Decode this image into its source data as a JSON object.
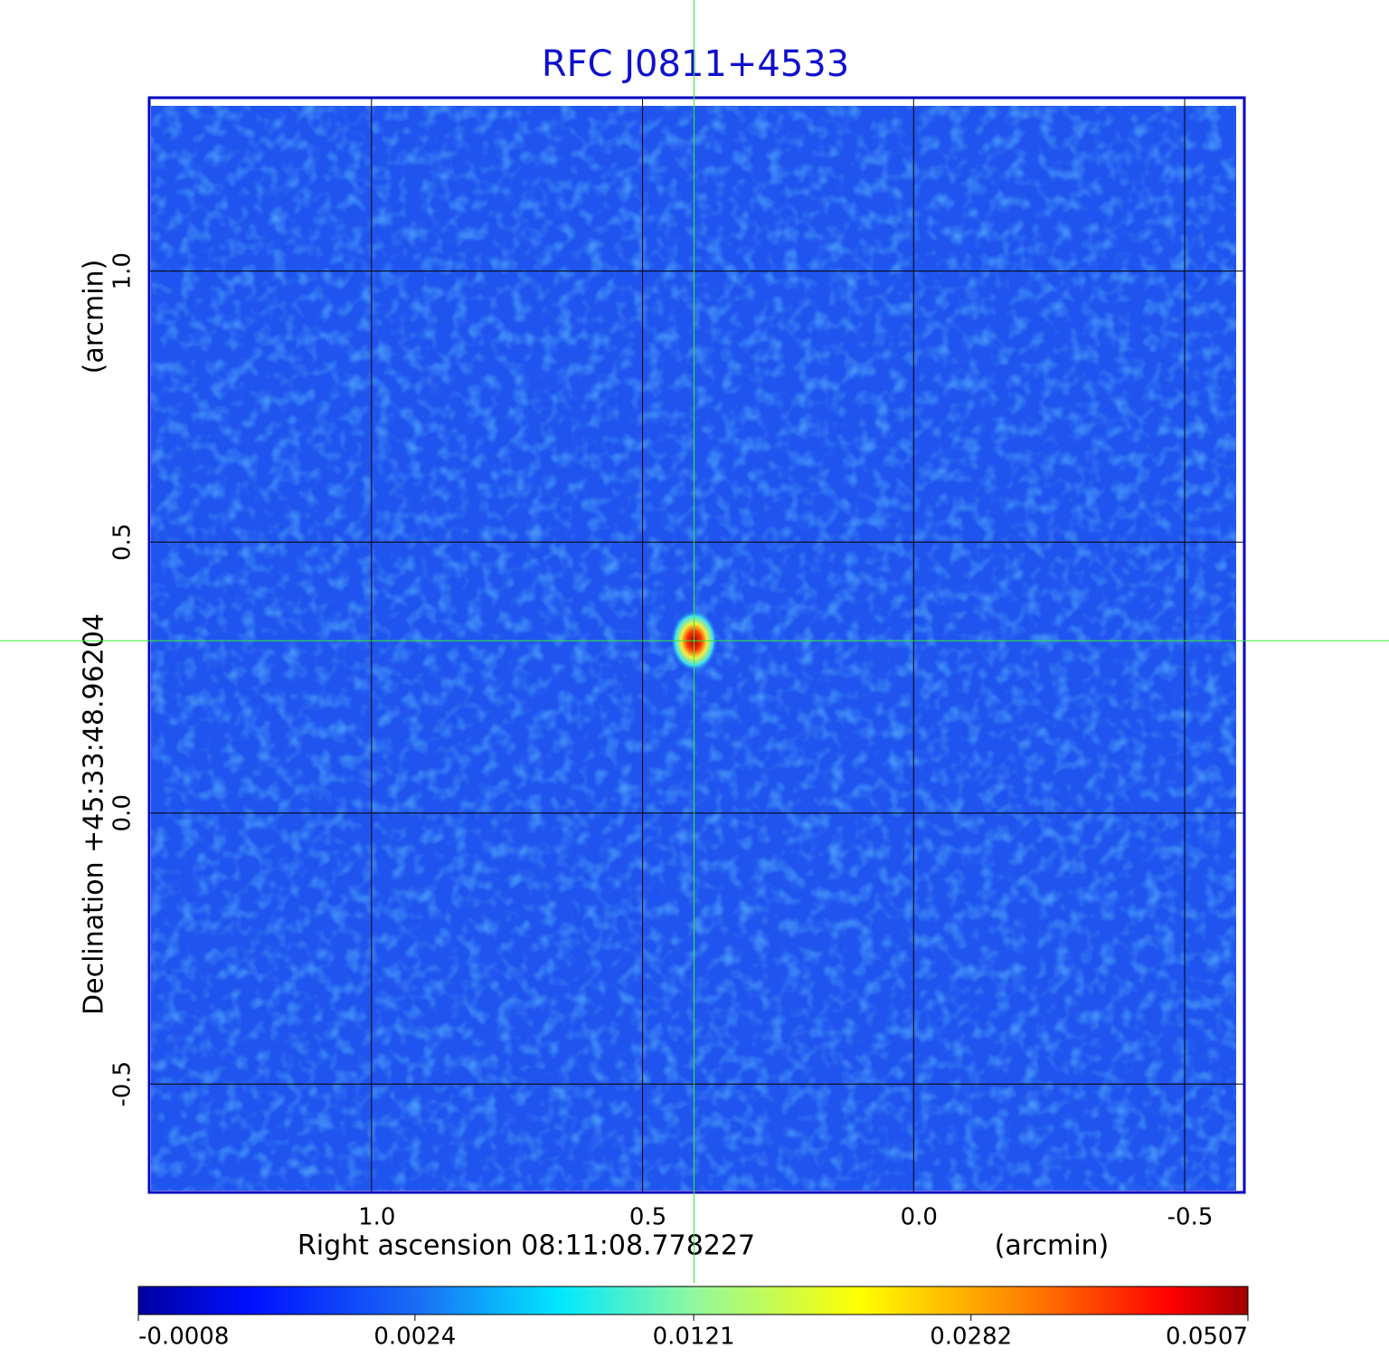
{
  "chart_data": {
    "type": "image",
    "title": "RFC J0811+4533",
    "xlabel": "Right ascension  08:11:08.778227",
    "xunit": "(arcmin)",
    "ylabel": "Declination  +45:33:48.96204",
    "yunit": "(arcmin)",
    "xlim": [
      1.41,
      -0.61
    ],
    "ylim": [
      -0.7,
      1.32
    ],
    "xticks": [
      {
        "value": 1,
        "label": "1.0"
      },
      0.5,
      {
        "value": 0,
        "label": "0.0"
      },
      -0.5
    ],
    "yticks": [
      -0.5,
      {
        "value": 0,
        "label": "0.0"
      },
      0.5,
      {
        "value": 1,
        "label": "1.0"
      }
    ],
    "grid": true,
    "crosshair": {
      "x": 0.405,
      "y": 0.318
    },
    "colorbar_lim": [
      -0.0008,
      0.0507
    ],
    "colorbar_scale": "sqrt",
    "colorbar_ticks": [
      -0.0008,
      0.0024,
      0.0121,
      0.0282,
      0.0507
    ]
  }
}
